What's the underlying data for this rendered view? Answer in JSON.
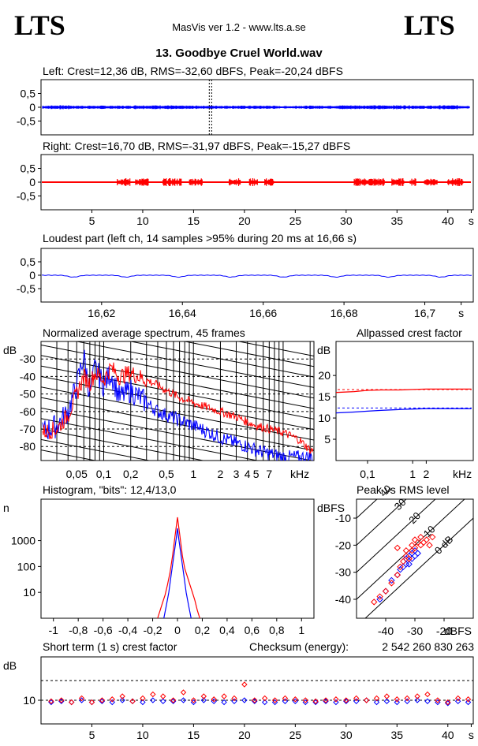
{
  "header": {
    "logo_left": "LTS",
    "logo_right": "LTS",
    "app": "MasVis ver 1.2 - www.lts.a.se",
    "file_title": "13. Goodbye Cruel World.wav"
  },
  "colors": {
    "left": "#0000ff",
    "right": "#ff0000",
    "axis": "#000000"
  },
  "chart_data": [
    {
      "id": "left_waveform",
      "type": "line",
      "title": "Left: Crest=12,36 dB, RMS=-32,60 dBFS, Peak=-20,24 dBFS",
      "yticks": [
        "0,5",
        "0",
        "-0,5"
      ],
      "ytick_values": [
        0.5,
        0,
        -0.5
      ],
      "ylim": [
        -1,
        1
      ],
      "xlim": [
        0,
        42.5
      ],
      "marker_x": 16.66,
      "envelope_x": [
        0,
        2,
        4,
        6,
        8,
        10,
        12,
        14,
        16,
        18,
        20,
        22,
        24,
        26,
        28,
        30,
        32,
        34,
        36,
        38,
        40,
        42
      ],
      "envelope_y": [
        0.05,
        0.06,
        0.05,
        0.05,
        0.05,
        0.06,
        0.06,
        0.05,
        0.05,
        0.05,
        0.05,
        0.05,
        0.04,
        0.05,
        0.05,
        0.06,
        0.06,
        0.06,
        0.06,
        0.05,
        0.06,
        0.05
      ]
    },
    {
      "id": "right_waveform",
      "type": "line",
      "title": "Right: Crest=16,70 dB, RMS=-31,97 dBFS, Peak=-15,27 dBFS",
      "yticks": [
        "0,5",
        "0",
        "-0,5"
      ],
      "ytick_values": [
        0.5,
        0,
        -0.5
      ],
      "ylim": [
        -1,
        1
      ],
      "xlim": [
        0,
        42.5
      ],
      "xticks": [
        "5",
        "10",
        "15",
        "20",
        "25",
        "30",
        "35",
        "40",
        "s"
      ],
      "xtick_values": [
        5,
        10,
        15,
        20,
        25,
        30,
        35,
        40,
        42.3
      ],
      "bursts": [
        [
          7.5,
          8.8
        ],
        [
          9.3,
          10.6
        ],
        [
          12.0,
          13.8
        ],
        [
          14.6,
          15.9
        ],
        [
          18.5,
          19.6
        ],
        [
          20.5,
          21.3
        ],
        [
          22.0,
          22.9
        ],
        [
          30.8,
          33.8
        ],
        [
          34.5,
          35.7
        ],
        [
          36.3,
          36.9
        ],
        [
          37.7,
          39.0
        ],
        [
          40.0,
          41.5
        ]
      ],
      "burst_amp": 0.12
    },
    {
      "id": "loudest_part",
      "type": "line",
      "title": "Loudest part (left  ch, 14 samples >95% during 20 ms at 16,66 s)",
      "yticks": [
        "0,5",
        "0",
        "-0,5"
      ],
      "ytick_values": [
        0.5,
        0,
        -0.5
      ],
      "ylim": [
        -1,
        1
      ],
      "xlim": [
        16.605,
        16.712
      ],
      "xticks": [
        "16,62",
        "16,64",
        "16,66",
        "16,68",
        "16,7",
        "s"
      ],
      "xtick_values": [
        16.62,
        16.64,
        16.66,
        16.68,
        16.7,
        16.709
      ],
      "dip_x": [
        16.613,
        16.626,
        16.639,
        16.652,
        16.665,
        16.678,
        16.691,
        16.704
      ],
      "dip_y": -0.07
    },
    {
      "id": "spectrum",
      "type": "line",
      "title": "Normalized average spectrum, 45 frames",
      "ylabel": "dB",
      "xlabel": "kHz",
      "ytick_labels": [
        "-30",
        "-40",
        "-50",
        "-60",
        "-70",
        "-80"
      ],
      "ytick_values": [
        -30,
        -40,
        -50,
        -60,
        -70,
        -80
      ],
      "ylim": [
        -88,
        -20
      ],
      "xlim_khz": [
        0.02,
        22.05
      ],
      "xtick_labels": [
        "0,05",
        "0,1",
        "0,2",
        "0,5",
        "1",
        "2",
        "3",
        "4",
        "5",
        "7"
      ],
      "xtick_values": [
        0.05,
        0.1,
        0.2,
        0.5,
        1,
        2,
        3,
        4,
        5,
        7
      ],
      "series": [
        {
          "name": "left",
          "x": [
            0.02,
            0.03,
            0.04,
            0.05,
            0.06,
            0.07,
            0.08,
            0.1,
            0.12,
            0.15,
            0.2,
            0.3,
            0.4,
            0.5,
            0.7,
            1,
            1.5,
            2,
            3,
            4,
            5,
            7,
            10
          ],
          "y": [
            -72,
            -68,
            -60,
            -45,
            -28,
            -50,
            -35,
            -45,
            -38,
            -52,
            -48,
            -55,
            -60,
            -62,
            -65,
            -68,
            -72,
            -75,
            -78,
            -80,
            -82,
            -84,
            -86
          ]
        },
        {
          "name": "right",
          "x": [
            0.02,
            0.03,
            0.04,
            0.05,
            0.06,
            0.07,
            0.08,
            0.1,
            0.12,
            0.15,
            0.2,
            0.3,
            0.4,
            0.5,
            0.7,
            1,
            1.5,
            2,
            3,
            4,
            5,
            7,
            10,
            15,
            20
          ],
          "y": [
            -72,
            -70,
            -62,
            -50,
            -40,
            -44,
            -38,
            -42,
            -35,
            -40,
            -38,
            -42,
            -45,
            -48,
            -52,
            -55,
            -58,
            -60,
            -63,
            -66,
            -68,
            -70,
            -72,
            -76,
            -82
          ]
        }
      ]
    },
    {
      "id": "allpassed_crest",
      "type": "line",
      "title": "Allpassed crest factor",
      "ylabel": "dB",
      "xlabel": "kHz",
      "ytick_labels": [
        "20",
        "15",
        "10",
        "5"
      ],
      "ytick_values": [
        20,
        15,
        10,
        5
      ],
      "ylim": [
        0,
        28
      ],
      "xlim_khz": [
        0.02,
        22.05
      ],
      "xtick_labels": [
        "0,1",
        "1",
        "2"
      ],
      "xtick_values": [
        0.1,
        1,
        2
      ],
      "series": [
        {
          "name": "left",
          "x": [
            0.02,
            0.05,
            0.1,
            0.2,
            0.5,
            1,
            2,
            5,
            10,
            20
          ],
          "y": [
            11.2,
            11.4,
            11.6,
            11.8,
            12.0,
            12.1,
            12.2,
            12.2,
            12.2,
            12.2
          ],
          "ref": 12.36
        },
        {
          "name": "right",
          "x": [
            0.02,
            0.05,
            0.1,
            0.2,
            0.5,
            1,
            2,
            5,
            10,
            20
          ],
          "y": [
            16.0,
            16.2,
            16.5,
            16.6,
            16.6,
            16.7,
            16.8,
            16.8,
            16.8,
            16.8
          ],
          "ref": 16.7
        }
      ]
    },
    {
      "id": "histogram",
      "type": "line",
      "title": "Histogram, \"bits\": 12,4/13,0",
      "ylabel": "n",
      "ytick_labels": [
        "1000",
        "100",
        "10"
      ],
      "ytick_values": [
        1000,
        100,
        10
      ],
      "ylim_log": [
        1,
        40000
      ],
      "xlim": [
        -1.1,
        1.1
      ],
      "xtick_labels": [
        "-1",
        "-0,8",
        "-0,6",
        "-0,4",
        "-0,2",
        "0",
        "0,2",
        "0,4",
        "0,6",
        "0,8",
        "1"
      ],
      "xtick_values": [
        -1,
        -0.8,
        -0.6,
        -0.4,
        -0.2,
        0,
        0.2,
        0.4,
        0.6,
        0.8,
        1
      ],
      "series": [
        {
          "name": "left",
          "x": [
            -0.11,
            -0.09,
            -0.07,
            -0.05,
            -0.03,
            -0.01,
            0,
            0.01,
            0.03,
            0.05,
            0.07,
            0.09,
            0.11
          ],
          "y": [
            1,
            3,
            10,
            50,
            250,
            1200,
            3000,
            1200,
            250,
            50,
            10,
            3,
            1
          ]
        },
        {
          "name": "right",
          "x": [
            -0.16,
            -0.14,
            -0.12,
            -0.1,
            -0.08,
            -0.06,
            -0.04,
            -0.02,
            0,
            0.02,
            0.04,
            0.06,
            0.08,
            0.1,
            0.12,
            0.14,
            0.16,
            0.18
          ],
          "y": [
            1,
            2,
            4,
            8,
            20,
            60,
            250,
            1500,
            8000,
            1500,
            250,
            80,
            40,
            20,
            10,
            5,
            2,
            1
          ]
        }
      ]
    },
    {
      "id": "peak_vs_rms",
      "type": "scatter",
      "title": "Peak vs RMS level",
      "ylabel": "dBFS",
      "xlabel": "dBFS",
      "xlim": [
        -50,
        -10
      ],
      "ylim": [
        -47,
        -3
      ],
      "ytick_labels": [
        "-10",
        "-20",
        "-30",
        "-40"
      ],
      "ytick_values": [
        -10,
        -20,
        -30,
        -40
      ],
      "xtick_labels": [
        "-40",
        "-30",
        "-20"
      ],
      "xtick_values": [
        -40,
        -30,
        -20
      ],
      "diagonal_labels": [
        "40",
        "30",
        "20",
        "10",
        "0 dB"
      ],
      "diagonal_values": [
        40,
        30,
        20,
        10,
        0
      ],
      "series": [
        {
          "name": "left",
          "x": [
            -42,
            -40,
            -38,
            -36,
            -35,
            -34,
            -33,
            -33,
            -32,
            -32,
            -31,
            -31,
            -30,
            -30,
            -29
          ],
          "y": [
            -40,
            -37,
            -33,
            -31,
            -29,
            -28,
            -27,
            -25,
            -27,
            -24,
            -25,
            -23,
            -24,
            -22,
            -23
          ]
        },
        {
          "name": "right",
          "x": [
            -44,
            -42,
            -40,
            -38,
            -36,
            -35,
            -34,
            -33,
            -32,
            -31,
            -31,
            -30,
            -30,
            -29,
            -28,
            -28,
            -27,
            -26,
            -25,
            -24,
            -33,
            -36
          ],
          "y": [
            -41,
            -39,
            -37,
            -34,
            -31,
            -28,
            -26,
            -24,
            -25,
            -22,
            -20,
            -21,
            -18,
            -19,
            -20,
            -17,
            -19,
            -18,
            -20,
            -17,
            -22,
            -21
          ]
        }
      ]
    },
    {
      "id": "short_term_crest",
      "type": "scatter",
      "title": "Short term (1 s) crest factor",
      "checksum_label": "Checksum (energy):",
      "checksum": "2 542 260 830 263",
      "ylabel": "dB",
      "ytick_labels": [
        "10"
      ],
      "ytick_values": [
        10
      ],
      "ylim": [
        -2,
        32
      ],
      "dashed_refs": [
        10,
        20
      ],
      "xlim": [
        0,
        42.5
      ],
      "xtick_labels": [
        "5",
        "10",
        "15",
        "20",
        "25",
        "30",
        "35",
        "40",
        "s"
      ],
      "xtick_values": [
        5,
        10,
        15,
        20,
        25,
        30,
        35,
        40,
        42.3
      ],
      "series": [
        {
          "name": "left",
          "x": [
            1,
            2,
            3,
            4,
            5,
            6,
            7,
            8,
            9,
            10,
            11,
            12,
            13,
            14,
            15,
            16,
            17,
            18,
            19,
            20,
            21,
            22,
            23,
            24,
            25,
            26,
            27,
            28,
            29,
            30,
            31,
            32,
            33,
            34,
            35,
            36,
            37,
            38,
            39,
            40,
            41,
            42
          ],
          "y": [
            9,
            9.5,
            9,
            10,
            9,
            9.5,
            9,
            10,
            9.5,
            9,
            10,
            9.5,
            9.5,
            10,
            9,
            10,
            9.5,
            9,
            9.5,
            10,
            9.5,
            9,
            9,
            9.5,
            9.5,
            9,
            9,
            9.5,
            9,
            9.5,
            9.5,
            10,
            9,
            9.5,
            9,
            9.5,
            10,
            9.5,
            9,
            8.5,
            9.5,
            9
          ]
        },
        {
          "name": "right",
          "x": [
            1,
            2,
            3,
            4,
            5,
            6,
            7,
            8,
            9,
            10,
            11,
            12,
            13,
            14,
            15,
            16,
            17,
            18,
            19,
            20,
            21,
            22,
            23,
            24,
            25,
            26,
            27,
            28,
            29,
            30,
            31,
            32,
            33,
            34,
            35,
            36,
            37,
            38,
            39,
            40,
            41,
            42
          ],
          "y": [
            9.5,
            10,
            9,
            11,
            9,
            10,
            10.5,
            12,
            9.5,
            11,
            13,
            12,
            10,
            14,
            10,
            12,
            10.5,
            12,
            11,
            18,
            10,
            11,
            10,
            11,
            10.5,
            10,
            9.5,
            10,
            10.5,
            10,
            11,
            10,
            11,
            12,
            10.5,
            11,
            12,
            13,
            10,
            9,
            11,
            10.5
          ]
        }
      ]
    }
  ]
}
